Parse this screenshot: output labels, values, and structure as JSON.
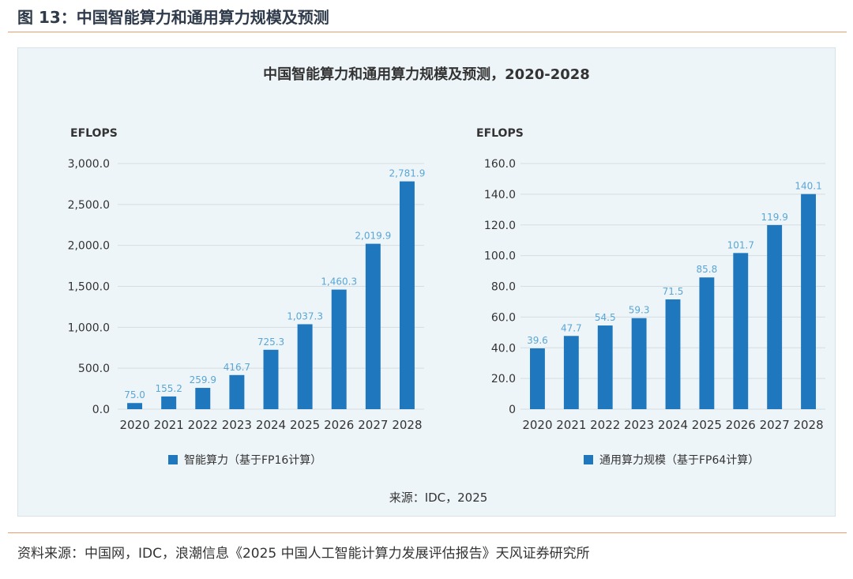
{
  "figure_title": "图 13：中国智能算力和通用算力规模及预测",
  "source_note": "资料来源：中国网，IDC，浪潮信息《2025 中国人工智能计算力发展评估报告》天风证券研究所",
  "panel": {
    "title": "中国智能算力和通用算力规模及预测，2020-2028",
    "inner_source": "来源：IDC，2025"
  },
  "colors": {
    "bar": "#1f78bd",
    "label": "#5aa6d6",
    "grid": "#d4dde2",
    "axis_text": "#333333"
  },
  "chart_data": [
    {
      "type": "bar",
      "ylabel": "EFLOPS",
      "categories": [
        "2020",
        "2021",
        "2022",
        "2023",
        "2024",
        "2025",
        "2026",
        "2027",
        "2028"
      ],
      "series": [
        {
          "name": "智能算力（基于FP16计算）",
          "values": [
            75.0,
            155.2,
            259.9,
            416.7,
            725.3,
            1037.3,
            1460.3,
            2019.9,
            2781.9
          ],
          "labels": [
            "75.0",
            "155.2",
            "259.9",
            "416.7",
            "725.3",
            "1,037.3",
            "1,460.3",
            "2,019.9",
            "2,781.9"
          ]
        }
      ],
      "ylim": [
        0,
        3000
      ],
      "yticks": [
        0,
        500,
        1000,
        1500,
        2000,
        2500,
        3000
      ],
      "ytick_labels": [
        "0.0",
        "500.0",
        "1,000.0",
        "1,500.0",
        "2,000.0",
        "2,500.0",
        "3,000.0"
      ],
      "grid": true,
      "legend": "bottom"
    },
    {
      "type": "bar",
      "ylabel": "EFLOPS",
      "categories": [
        "2020",
        "2021",
        "2022",
        "2023",
        "2024",
        "2025",
        "2026",
        "2027",
        "2028"
      ],
      "series": [
        {
          "name": "通用算力规模（基于FP64计算）",
          "values": [
            39.6,
            47.7,
            54.5,
            59.3,
            71.5,
            85.8,
            101.7,
            119.9,
            140.1
          ],
          "labels": [
            "39.6",
            "47.7",
            "54.5",
            "59.3",
            "71.5",
            "85.8",
            "101.7",
            "119.9",
            "140.1"
          ]
        }
      ],
      "ylim": [
        0,
        160
      ],
      "yticks": [
        0,
        20,
        40,
        60,
        80,
        100,
        120,
        140,
        160
      ],
      "ytick_labels": [
        "0",
        "20.0",
        "40.0",
        "60.0",
        "80.0",
        "100.0",
        "120.0",
        "140.0",
        "160.0"
      ],
      "grid": true,
      "legend": "bottom"
    }
  ]
}
